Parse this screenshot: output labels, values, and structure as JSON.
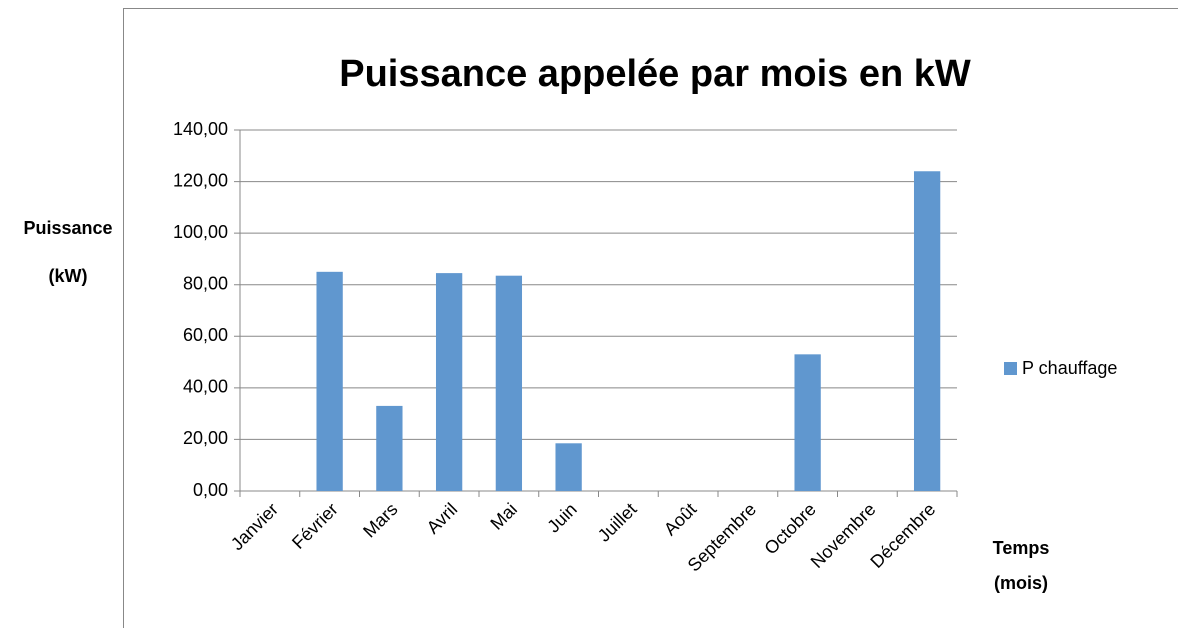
{
  "chart_data": {
    "type": "bar",
    "title": "Puissance appelée par mois en kW",
    "y_label": [
      "Puissance",
      "(kW)"
    ],
    "x_label": [
      "Temps",
      "(mois)"
    ],
    "categories": [
      "Janvier",
      "Février",
      "Mars",
      "Avril",
      "Mai",
      "Juin",
      "Juillet",
      "Août",
      "Septembre",
      "Octobre",
      "Novembre",
      "Décembre"
    ],
    "series": [
      {
        "name": "P chauffage",
        "color": "#6097cf",
        "values": [
          0,
          85,
          33,
          84.5,
          83.5,
          18.5,
          0,
          0,
          0,
          53,
          0,
          124
        ]
      }
    ],
    "ylim": [
      0,
      140
    ],
    "yticks": [
      {
        "value": 0,
        "label": "0,00"
      },
      {
        "value": 20,
        "label": "20,00"
      },
      {
        "value": 40,
        "label": "40,00"
      },
      {
        "value": 60,
        "label": "60,00"
      },
      {
        "value": 80,
        "label": "80,00"
      },
      {
        "value": 100,
        "label": "100,00"
      },
      {
        "value": 120,
        "label": "120,00"
      },
      {
        "value": 140,
        "label": "140,00"
      }
    ],
    "grid": true,
    "legend": "right"
  }
}
